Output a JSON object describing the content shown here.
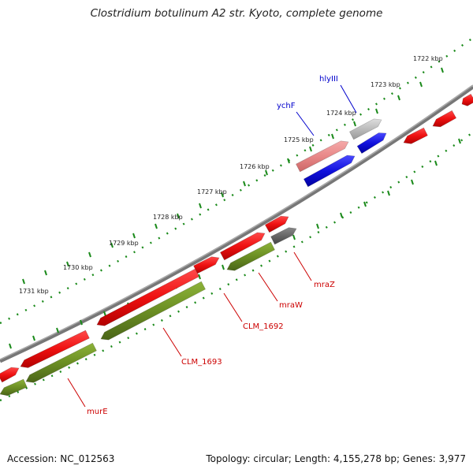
{
  "title": "Clostridium botulinum A2 str. Kyoto, complete genome",
  "footer": {
    "accession": "Accession: NC_012563",
    "topology": "Topology: circular; Length: 4,155,278 bp; Genes: 3,977"
  },
  "colors": {
    "backbone": "#8a8a8a",
    "ticks": "#1a8a1a",
    "cds": "#ee1111",
    "cds_pale": "#e88888",
    "rna_gray": "#bbbbbb",
    "olive": "#6b8e23",
    "blue": "#1111dd",
    "dark_gray": "#666666",
    "label_red": "#cc0000",
    "label_blue": "#0000cc"
  },
  "ruler": [
    "1722 kbp",
    "1723 kbp",
    "1724 kbp",
    "1725 kbp",
    "1726 kbp",
    "1727 kbp",
    "1728 kbp",
    "1729 kbp",
    "1730 kbp",
    "1731 kbp"
  ],
  "gene_labels": [
    {
      "text": "hlyIII",
      "strand": "outer",
      "color": "blue"
    },
    {
      "text": "ychF",
      "strand": "outer",
      "color": "blue"
    },
    {
      "text": "mraZ",
      "strand": "inner",
      "color": "red"
    },
    {
      "text": "mraW",
      "strand": "inner",
      "color": "red"
    },
    {
      "text": "CLM_1692",
      "strand": "inner",
      "color": "red"
    },
    {
      "text": "CLM_1693",
      "strand": "inner",
      "color": "red"
    },
    {
      "text": "murE",
      "strand": "inner",
      "color": "red"
    }
  ]
}
